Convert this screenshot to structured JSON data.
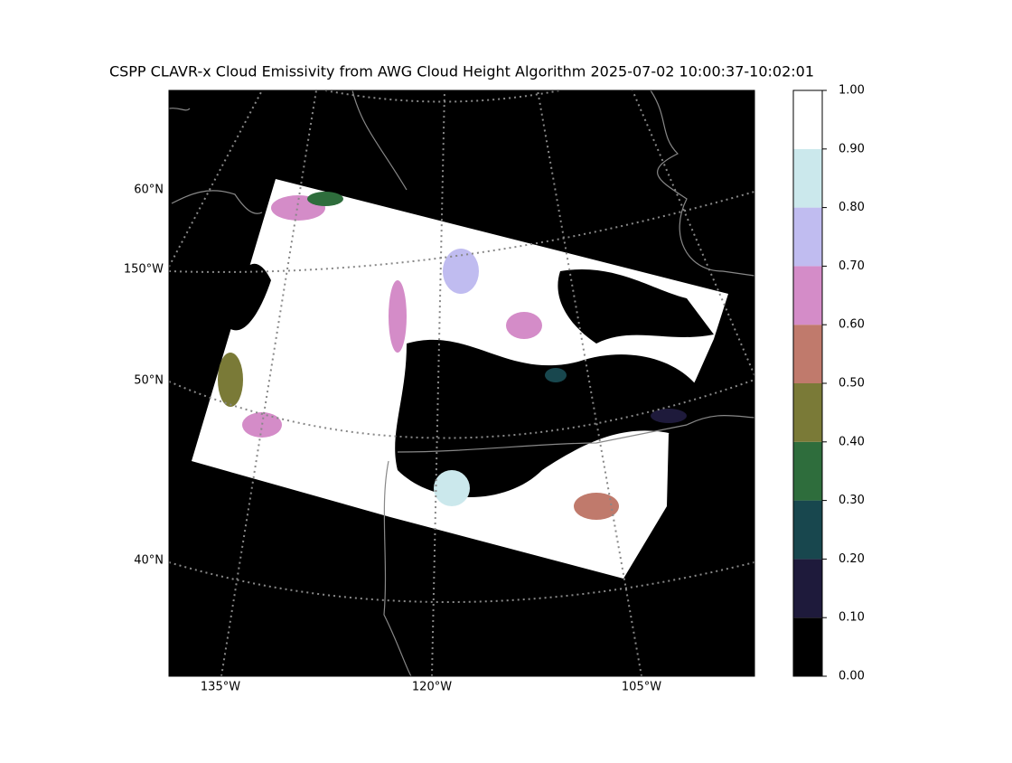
{
  "title": "CSPP CLAVR-x Cloud Emissivity from AWG Cloud Height Algorithm 2025-07-02 10:00:37-10:02:01",
  "lat_labels": [
    "60°N",
    "150°W",
    "50°N",
    "40°N"
  ],
  "lon_labels": [
    "135°W",
    "120°W",
    "105°W"
  ],
  "colorbar": {
    "ylim": [
      0,
      1
    ],
    "ticks": [
      {
        "value": 0,
        "label": "0.00"
      },
      {
        "value": 0.1,
        "label": "0.10"
      },
      {
        "value": 0.2,
        "label": "0.20"
      },
      {
        "value": 0.3,
        "label": "0.30"
      },
      {
        "value": 0.4,
        "label": "0.40"
      },
      {
        "value": 0.5,
        "label": "0.50"
      },
      {
        "value": 0.6,
        "label": "0.60"
      },
      {
        "value": 0.7,
        "label": "0.70"
      },
      {
        "value": 0.8,
        "label": "0.80"
      },
      {
        "value": 0.9,
        "label": "0.90"
      },
      {
        "value": 1,
        "label": "1.00"
      }
    ],
    "colors": [
      "#000000",
      "#1e1a3b",
      "#18474e",
      "#2e6d3c",
      "#7a7a37",
      "#c07a6c",
      "#d48cc8",
      "#c0bcf0",
      "#cbe8ec",
      "#ffffff"
    ]
  }
}
